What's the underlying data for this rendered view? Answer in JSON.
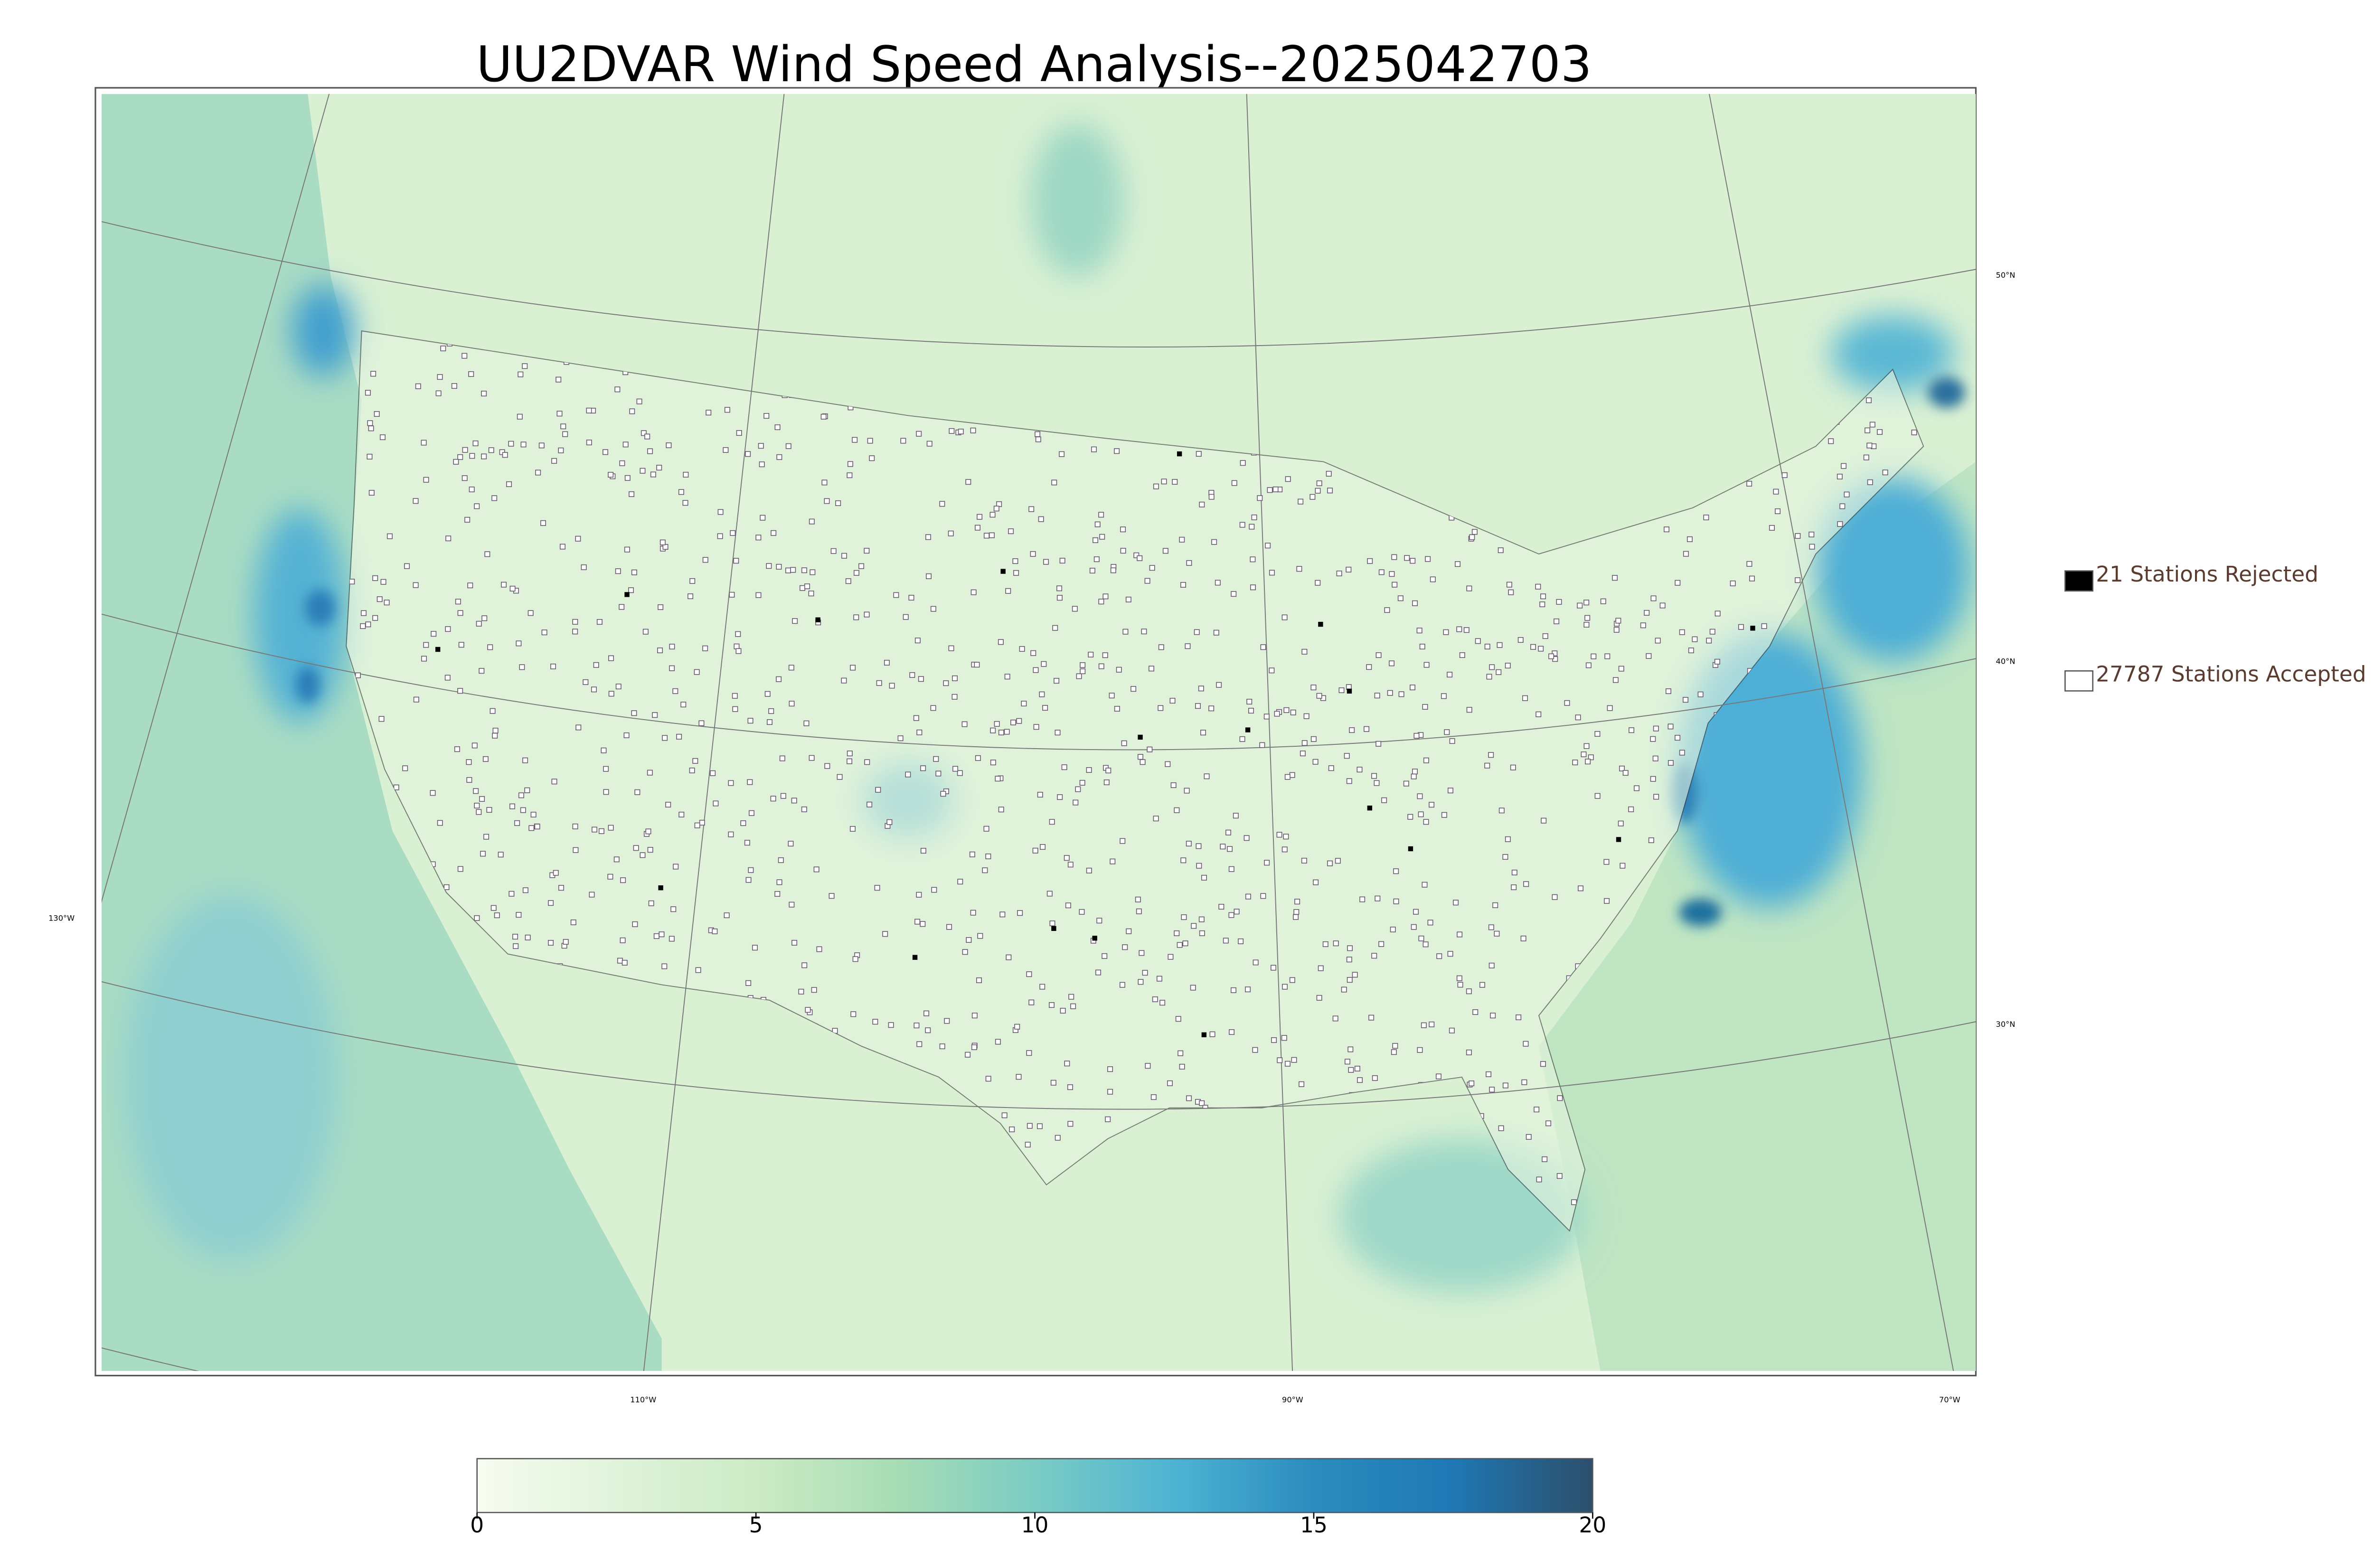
{
  "title": "UU2DVAR Wind Speed Analysis--2025042703",
  "legend": [
    {
      "label": "21 Stations Rejected",
      "color": "#000000"
    },
    {
      "label": "27787 Stations Accepted",
      "color": "#ffffff"
    }
  ],
  "colorbar": {
    "lim": [
      0,
      20
    ],
    "ticks": [
      0,
      5,
      10,
      15,
      20
    ],
    "colors": [
      "#f7fcf0",
      "#e0f3db",
      "#ccebc5",
      "#a8ddb5",
      "#7bccc4",
      "#4eb3d3",
      "#2b8cbe",
      "#1f78b4",
      "#2c4f6b"
    ]
  },
  "graticule": {
    "lat_labels": [
      "50°N",
      "40°N",
      "30°N"
    ],
    "lon_labels": [
      "130°W",
      "110°W",
      "90°W",
      "70°W"
    ]
  }
}
